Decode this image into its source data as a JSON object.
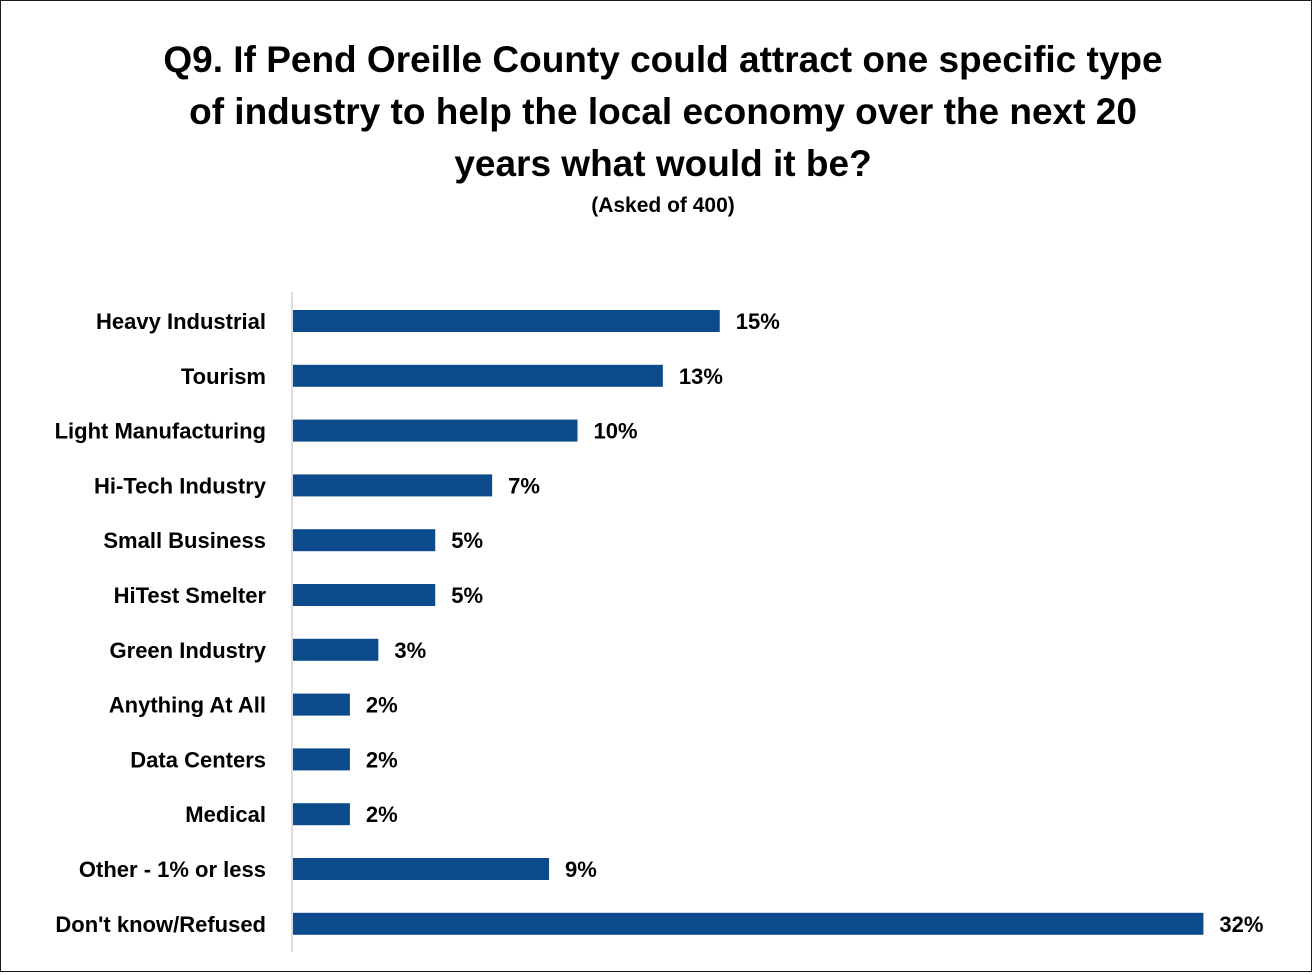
{
  "chart_data": {
    "type": "bar",
    "orientation": "horizontal",
    "title": "Q9. If Pend Oreille County could attract one specific type of industry to help the local economy over the next 20 years what would it be?",
    "subtitle": "(Asked of 400)",
    "categories": [
      "Heavy Industrial",
      "Tourism",
      "Light Manufacturing",
      "Hi-Tech Industry",
      "Small Business",
      "HiTest Smelter",
      "Green Industry",
      "Anything At All",
      "Data Centers",
      "Medical",
      "Other - 1% or less",
      "Don't know/Refused"
    ],
    "values": [
      15,
      13,
      10,
      7,
      5,
      5,
      3,
      2,
      2,
      2,
      9,
      32
    ],
    "value_labels": [
      "15%",
      "13%",
      "10%",
      "7%",
      "5%",
      "5%",
      "3%",
      "2%",
      "2%",
      "2%",
      "9%",
      "32%"
    ],
    "unit": "%",
    "xlim": [
      0,
      32
    ],
    "grid": false,
    "legend": "none",
    "bar_color": "#0b4a8b"
  }
}
